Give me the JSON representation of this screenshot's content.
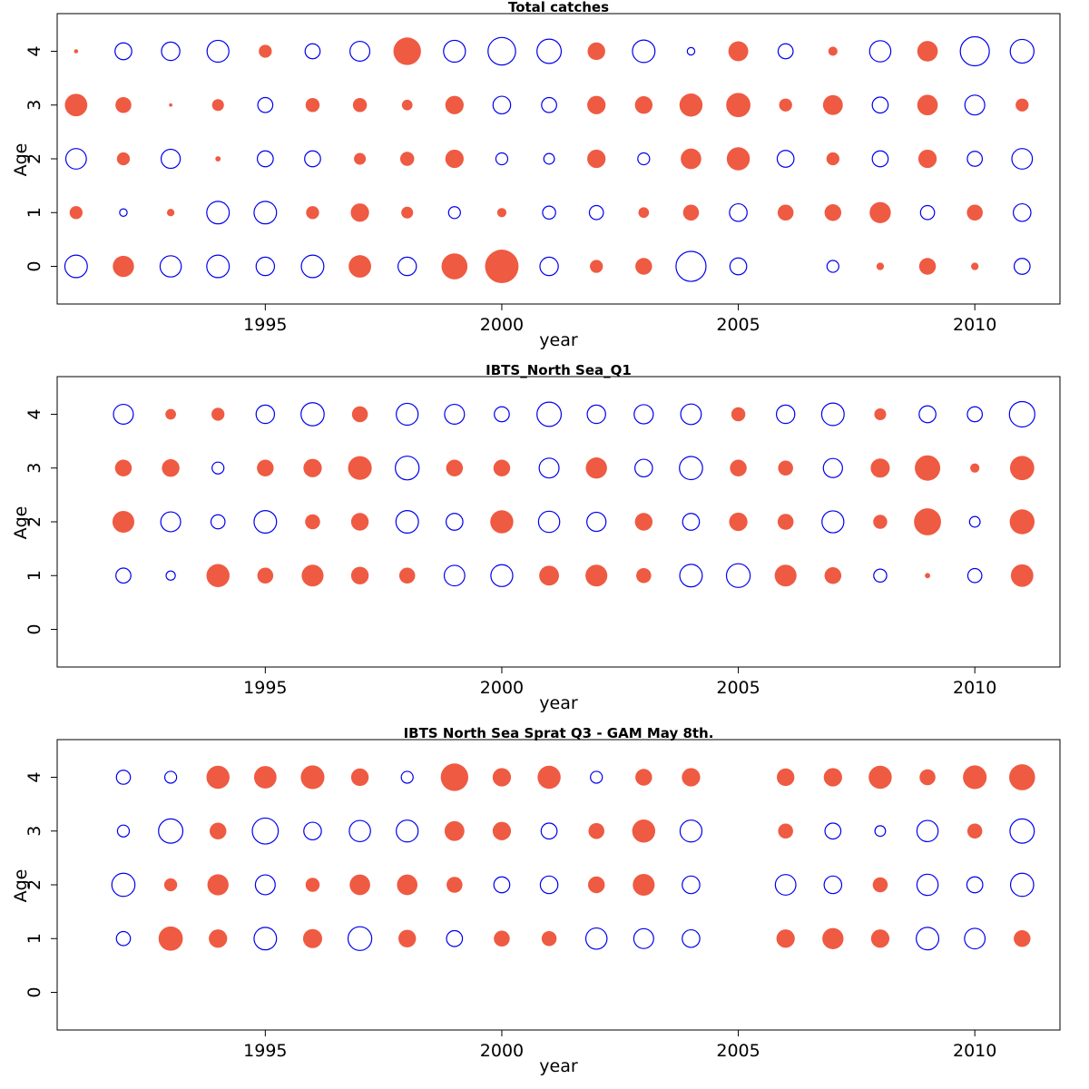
{
  "colors": {
    "positive": "#ef5a42",
    "negative": "#0000ee"
  },
  "chart_data": [
    {
      "type": "bubble",
      "title": "Total catches",
      "xlabel": "year",
      "ylabel": "Age",
      "xlim": [
        1990.6,
        2011.8
      ],
      "ylim": [
        -0.7,
        4.7
      ],
      "xticks": [
        1995,
        2000,
        2005,
        2010
      ],
      "yticks": [
        0,
        1,
        2,
        3,
        4
      ],
      "years": [
        1991,
        1992,
        1993,
        1994,
        1995,
        1996,
        1997,
        1998,
        1999,
        2000,
        2001,
        2002,
        2003,
        2004,
        2005,
        2006,
        2007,
        2008,
        2009,
        2010,
        2011
      ],
      "ages": [
        0,
        1,
        2,
        3,
        4
      ],
      "residuals": {
        "0": [
          -0.9,
          0.8,
          -0.8,
          -0.9,
          -0.6,
          -0.9,
          0.9,
          -0.6,
          1.2,
          2.0,
          -0.6,
          0.3,
          0.5,
          -1.6,
          -0.5,
          null,
          -0.25,
          0.1,
          0.5,
          0.1,
          -0.45
        ],
        "1": [
          0.3,
          -0.1,
          0.1,
          -0.9,
          -0.9,
          0.3,
          0.6,
          0.25,
          -0.25,
          0.15,
          -0.3,
          -0.35,
          0.2,
          0.45,
          -0.55,
          0.45,
          0.5,
          0.8,
          -0.35,
          0.45,
          -0.55
        ],
        "2": [
          -0.75,
          0.3,
          -0.65,
          0.05,
          -0.45,
          -0.45,
          0.25,
          0.35,
          0.6,
          -0.25,
          -0.2,
          0.6,
          -0.25,
          0.75,
          0.95,
          -0.5,
          0.3,
          -0.45,
          0.6,
          -0.4,
          -0.75
        ],
        "3": [
          0.9,
          0.45,
          0.02,
          0.25,
          -0.4,
          0.35,
          0.35,
          0.2,
          0.6,
          -0.55,
          -0.4,
          0.6,
          0.55,
          0.95,
          1.05,
          0.3,
          0.7,
          -0.45,
          0.75,
          -0.7,
          0.3
        ],
        "4": [
          0.03,
          -0.5,
          -0.6,
          -0.85,
          0.3,
          -0.4,
          -0.7,
          1.35,
          -0.85,
          -1.35,
          -1.05,
          0.55,
          -0.9,
          -0.1,
          0.7,
          -0.4,
          0.15,
          -0.8,
          0.75,
          -1.5,
          -1.0
        ]
      }
    },
    {
      "type": "bubble",
      "title": "IBTS_North Sea_Q1",
      "xlabel": "year",
      "ylabel": "Age",
      "xlim": [
        1990.6,
        2011.8
      ],
      "ylim": [
        -0.7,
        4.7
      ],
      "xticks": [
        1995,
        2000,
        2005,
        2010
      ],
      "yticks": [
        0,
        1,
        2,
        3,
        4
      ],
      "years": [
        1991,
        1992,
        1993,
        1994,
        1995,
        1996,
        1997,
        1998,
        1999,
        2000,
        2001,
        2002,
        2003,
        2004,
        2005,
        2006,
        2007,
        2008,
        2009,
        2010,
        2011
      ],
      "ages": [
        0,
        1,
        2,
        3,
        4
      ],
      "residuals": {
        "0": [
          null,
          null,
          null,
          null,
          null,
          null,
          null,
          null,
          null,
          null,
          null,
          null,
          null,
          null,
          null,
          null,
          null,
          null,
          null,
          null,
          null
        ],
        "1": [
          null,
          -0.4,
          -0.15,
          0.95,
          0.45,
          0.85,
          0.55,
          0.45,
          -0.75,
          -0.85,
          0.7,
          0.85,
          0.4,
          -0.9,
          -1.0,
          0.85,
          0.5,
          -0.3,
          0.05,
          -0.35,
          0.9
        ],
        "2": [
          null,
          0.85,
          -0.7,
          -0.35,
          -0.9,
          0.4,
          0.55,
          -0.9,
          -0.5,
          0.95,
          -0.8,
          -0.65,
          0.55,
          -0.5,
          0.6,
          0.45,
          -0.85,
          0.35,
          1.3,
          -0.2,
          1.1
        ],
        "3": [
          null,
          0.5,
          0.55,
          -0.25,
          0.5,
          0.6,
          1.0,
          -1.0,
          0.5,
          0.5,
          -0.7,
          0.8,
          -0.55,
          -0.95,
          0.5,
          0.4,
          -0.65,
          0.65,
          1.15,
          0.15,
          1.05
        ],
        "4": [
          null,
          -0.7,
          0.2,
          0.3,
          -0.6,
          -0.95,
          0.45,
          -0.85,
          -0.7,
          -0.4,
          -1.05,
          -0.6,
          -0.65,
          -0.75,
          0.35,
          -0.6,
          -0.9,
          0.25,
          -0.5,
          -0.4,
          -1.15
        ]
      }
    },
    {
      "type": "bubble",
      "title": "IBTS North Sea Sprat Q3 - GAM May 8th.",
      "xlabel": "year",
      "ylabel": "Age",
      "xlim": [
        1990.6,
        2011.8
      ],
      "ylim": [
        -0.7,
        4.7
      ],
      "xticks": [
        1995,
        2000,
        2005,
        2010
      ],
      "yticks": [
        0,
        1,
        2,
        3,
        4
      ],
      "years": [
        1991,
        1992,
        1993,
        1994,
        1995,
        1996,
        1997,
        1998,
        1999,
        2000,
        2001,
        2002,
        2003,
        2004,
        2005,
        2006,
        2007,
        2008,
        2009,
        2010,
        2011
      ],
      "ages": [
        0,
        1,
        2,
        3,
        4
      ],
      "residuals": {
        "0": [
          null,
          null,
          null,
          null,
          null,
          null,
          null,
          null,
          null,
          null,
          null,
          null,
          null,
          null,
          null,
          null,
          null,
          null,
          null,
          null,
          null
        ],
        "1": [
          null,
          -0.35,
          1.05,
          0.6,
          -0.9,
          0.65,
          -1.0,
          0.55,
          -0.45,
          0.45,
          0.4,
          -0.8,
          -0.7,
          -0.55,
          null,
          0.6,
          0.8,
          0.6,
          -0.9,
          -0.75,
          0.5
        ],
        "2": [
          null,
          -0.95,
          0.3,
          0.8,
          -0.7,
          0.35,
          0.75,
          0.75,
          0.45,
          -0.45,
          -0.55,
          0.5,
          0.85,
          -0.55,
          null,
          -0.75,
          -0.55,
          0.4,
          -0.8,
          -0.45,
          -0.95
        ],
        "3": [
          null,
          -0.25,
          -1.05,
          0.5,
          -1.2,
          -0.55,
          -0.8,
          -0.85,
          0.7,
          0.6,
          -0.45,
          0.45,
          0.95,
          -0.85,
          null,
          0.4,
          -0.45,
          -0.2,
          -0.8,
          0.4,
          -1.05
        ],
        "4": [
          null,
          -0.35,
          -0.25,
          0.95,
          0.9,
          1.0,
          0.55,
          -0.25,
          1.35,
          0.6,
          0.95,
          -0.25,
          0.5,
          0.6,
          null,
          0.55,
          0.6,
          0.95,
          0.45,
          1.0,
          1.2
        ]
      }
    }
  ]
}
